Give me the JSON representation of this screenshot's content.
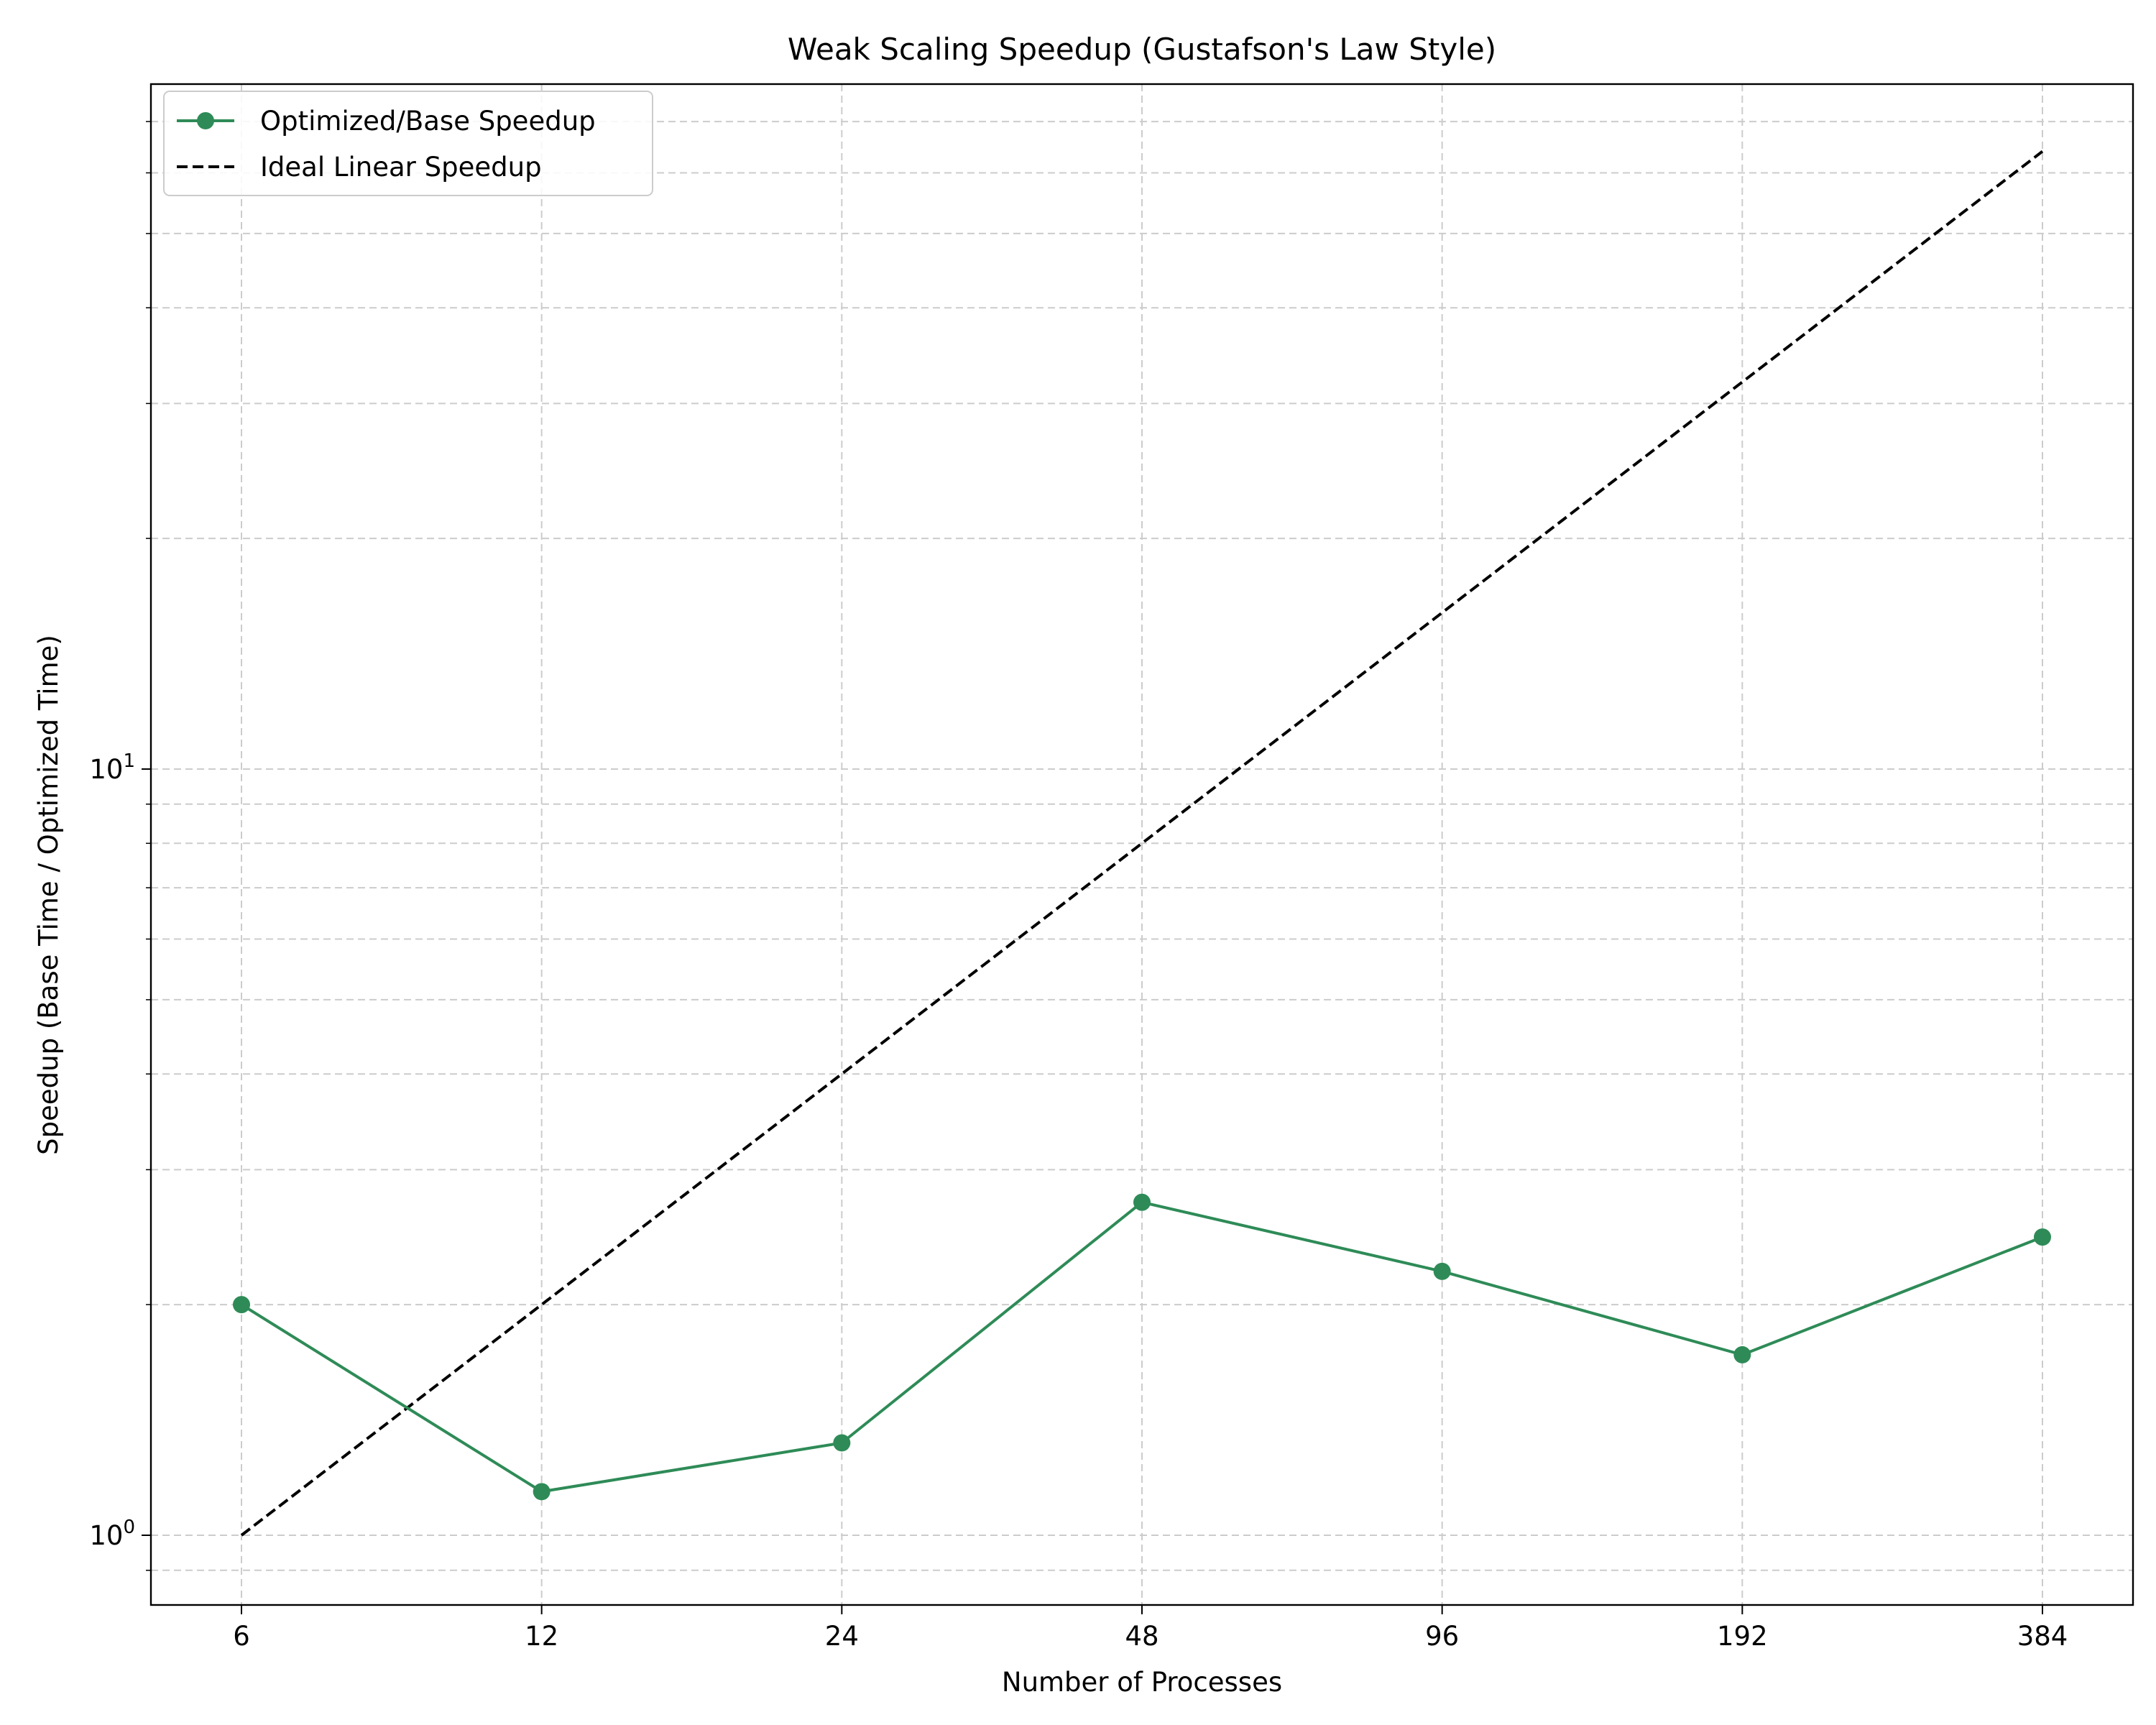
{
  "chart_data": {
    "type": "line",
    "title": "Weak Scaling Speedup (Gustafson's Law Style)",
    "xlabel": "Number of Processes",
    "ylabel": "Speedup (Base Time / Optimized Time)",
    "x_scale": "log2",
    "y_scale": "log10",
    "grid": true,
    "legend_position": "top-left",
    "xticks": [
      "6",
      "12",
      "24",
      "48",
      "96",
      "192",
      "384"
    ],
    "ytick_labels": [
      {
        "value": 1,
        "base": "10",
        "exp": "0"
      },
      {
        "value": 10,
        "base": "10",
        "exp": "1"
      }
    ],
    "x": [
      6,
      12,
      24,
      48,
      96,
      192,
      384
    ],
    "series": [
      {
        "name": "Optimized/Base Speedup",
        "style": "solid-with-markers",
        "color": "#2e8b57",
        "values": [
          2.0,
          1.14,
          1.32,
          2.72,
          2.21,
          1.72,
          2.45
        ]
      },
      {
        "name": "Ideal Linear Speedup",
        "style": "dashed",
        "color": "#000000",
        "values": [
          1,
          2,
          4,
          8,
          16,
          32,
          64
        ]
      }
    ]
  }
}
